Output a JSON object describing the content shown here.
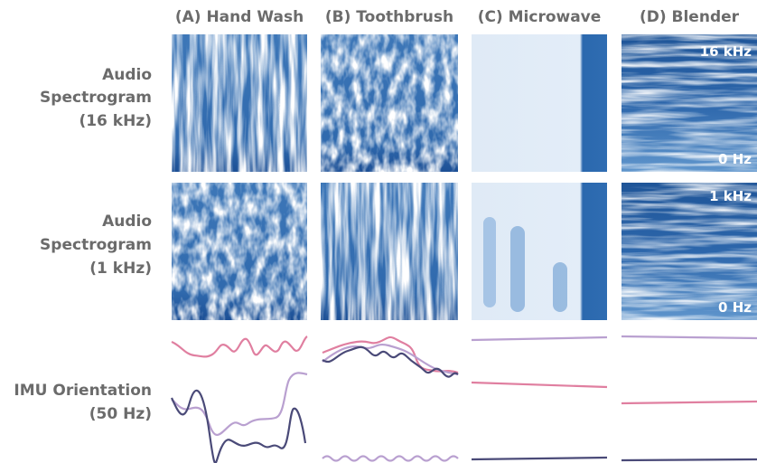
{
  "columns": [
    "(A) Hand Wash",
    "(B) Toothbrush",
    "(C) Microwave",
    "(D) Blender"
  ],
  "rows": [
    {
      "label_lines": [
        "Audio",
        "Spectrogram",
        "(16 kHz)"
      ],
      "axis_top": "16 kHz",
      "axis_bottom": "0 Hz"
    },
    {
      "label_lines": [
        "Audio",
        "Spectrogram",
        "(1 kHz)"
      ],
      "axis_top": "1 kHz",
      "axis_bottom": "0 Hz"
    },
    {
      "label_lines": [
        "IMU Orientation",
        "(50 Hz)"
      ]
    }
  ]
}
